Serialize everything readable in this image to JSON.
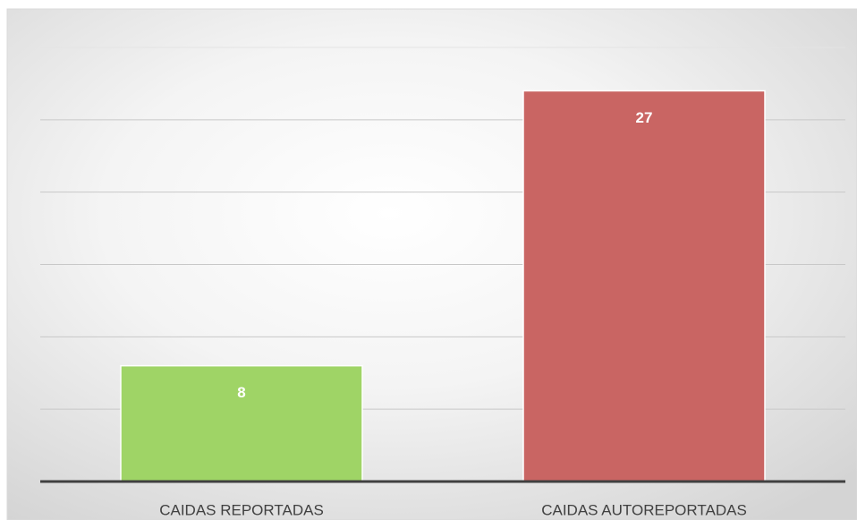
{
  "chart_data": {
    "type": "bar",
    "categories": [
      "CAIDAS REPORTADAS",
      "CAIDAS AUTOREPORTADAS"
    ],
    "values": [
      8,
      27
    ],
    "colors": [
      "#9fd466",
      "#c96563"
    ],
    "ylim": [
      0,
      30
    ],
    "yticks": [
      0,
      5,
      10,
      15,
      20,
      25,
      30
    ],
    "grid": true
  }
}
